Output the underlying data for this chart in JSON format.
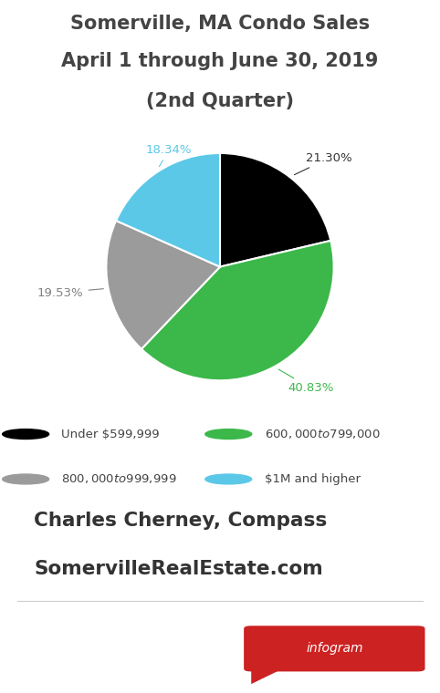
{
  "title_line1": "Somerville, MA Condo Sales",
  "title_line2": "April 1 through June 30, 2019",
  "title_line3": "(2nd Quarter)",
  "slices": [
    21.3,
    40.83,
    19.53,
    18.34
  ],
  "colors": [
    "#000000",
    "#3cb84a",
    "#9b9b9b",
    "#5bc8e8"
  ],
  "pct_labels": [
    "21.30%",
    "40.83%",
    "19.53%",
    "18.34%"
  ],
  "pct_colors": [
    "#000000",
    "#3cb84a",
    "#808080",
    "#5bc8e8"
  ],
  "legend_labels": [
    "Under $599,999",
    "$600,000 to $799,000",
    "$800,000 to $999,999",
    "$1M and higher"
  ],
  "legend_colors": [
    "#000000",
    "#3cb84a",
    "#9b9b9b",
    "#5bc8e8"
  ],
  "credit_line1": "Charles Cherney, Compass",
  "credit_line2": "SomervilleRealEstate.com",
  "bg_color": "#ffffff",
  "title_color": "#444444",
  "credit_color": "#333333",
  "infogram_bg": "#cc2222",
  "infogram_text": "infogram"
}
